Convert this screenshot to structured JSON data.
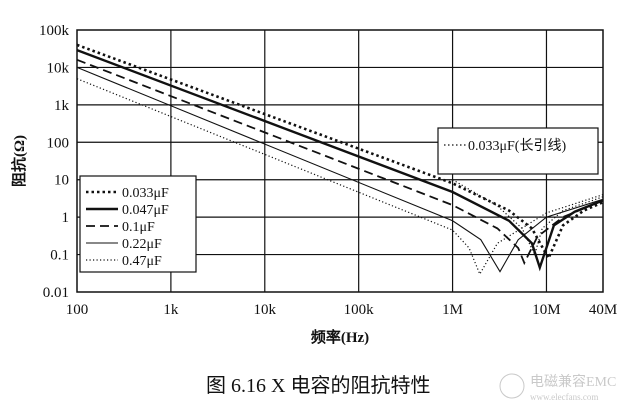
{
  "chart_data": {
    "type": "line",
    "title": "",
    "xlabel": "频率(Hz)",
    "ylabel": "阻抗(Ω)",
    "x_scale": "log",
    "y_scale": "log",
    "xlim": [
      100,
      40000000
    ],
    "ylim": [
      0.01,
      100000
    ],
    "grid": true,
    "x_ticks": [
      {
        "v": 100,
        "label": "100"
      },
      {
        "v": 1000,
        "label": "1k"
      },
      {
        "v": 10000,
        "label": "10k"
      },
      {
        "v": 100000,
        "label": "100k"
      },
      {
        "v": 1000000,
        "label": "1M"
      },
      {
        "v": 10000000,
        "label": "10M"
      },
      {
        "v": 40000000,
        "label": "40M"
      }
    ],
    "y_ticks": [
      {
        "v": 100000,
        "label": "100k"
      },
      {
        "v": 10000,
        "label": "10k"
      },
      {
        "v": 1000,
        "label": "1k"
      },
      {
        "v": 100,
        "label": "100"
      },
      {
        "v": 10,
        "label": "10"
      },
      {
        "v": 1,
        "label": "1"
      },
      {
        "v": 0.1,
        "label": "0.1"
      },
      {
        "v": 0.01,
        "label": "0.01"
      }
    ],
    "legend_placement": "lower-left",
    "series": [
      {
        "name": "0.033μF",
        "style": "dotted-bold",
        "points": [
          [
            100,
            40000
          ],
          [
            1000000,
            8
          ],
          [
            4000000,
            1.5
          ],
          [
            7000000,
            0.5
          ],
          [
            10500000,
            0.08
          ],
          [
            15000000,
            0.6
          ],
          [
            25000000,
            1.5
          ],
          [
            40000000,
            2.5
          ]
        ]
      },
      {
        "name": "0.047μF",
        "style": "solid-bold",
        "points": [
          [
            100,
            29000
          ],
          [
            1000000,
            4.7
          ],
          [
            4000000,
            0.8
          ],
          [
            7000000,
            0.2
          ],
          [
            8500000,
            0.045
          ],
          [
            12000000,
            0.6
          ],
          [
            20000000,
            1.4
          ],
          [
            40000000,
            2.8
          ]
        ]
      },
      {
        "name": "0.1μF",
        "style": "dashed",
        "points": [
          [
            100,
            16000
          ],
          [
            1000000,
            2.1
          ],
          [
            3000000,
            0.5
          ],
          [
            5000000,
            0.15
          ],
          [
            5800000,
            0.06
          ],
          [
            8000000,
            0.3
          ],
          [
            15000000,
            1
          ],
          [
            40000000,
            2.8
          ]
        ]
      },
      {
        "name": "0.22μF",
        "style": "solid-thin",
        "points": [
          [
            100,
            10000
          ],
          [
            1000000,
            0.8
          ],
          [
            2000000,
            0.25
          ],
          [
            3200000,
            0.035
          ],
          [
            5000000,
            0.25
          ],
          [
            10000000,
            1
          ],
          [
            40000000,
            3
          ]
        ]
      },
      {
        "name": "0.47μF",
        "style": "dotted-thin",
        "points": [
          [
            100,
            5000
          ],
          [
            1000000,
            0.45
          ],
          [
            1500000,
            0.15
          ],
          [
            1950000,
            0.03
          ],
          [
            3000000,
            0.2
          ],
          [
            10000000,
            1.3
          ],
          [
            40000000,
            4
          ]
        ]
      }
    ],
    "annotation": {
      "label": "0.033μF(长引线)",
      "style": "dotted-thin",
      "points": [
        [
          1000000,
          10
        ],
        [
          3000000,
          2
        ],
        [
          5500000,
          0.5
        ],
        [
          7500000,
          0.1
        ],
        [
          9000000,
          0.5
        ],
        [
          15000000,
          1.5
        ],
        [
          40000000,
          3.5
        ]
      ]
    }
  },
  "caption": "图 6.16   X 电容的阻抗特性",
  "watermark": {
    "text": "电磁兼容EMC",
    "url": "www.elecfans.com"
  }
}
